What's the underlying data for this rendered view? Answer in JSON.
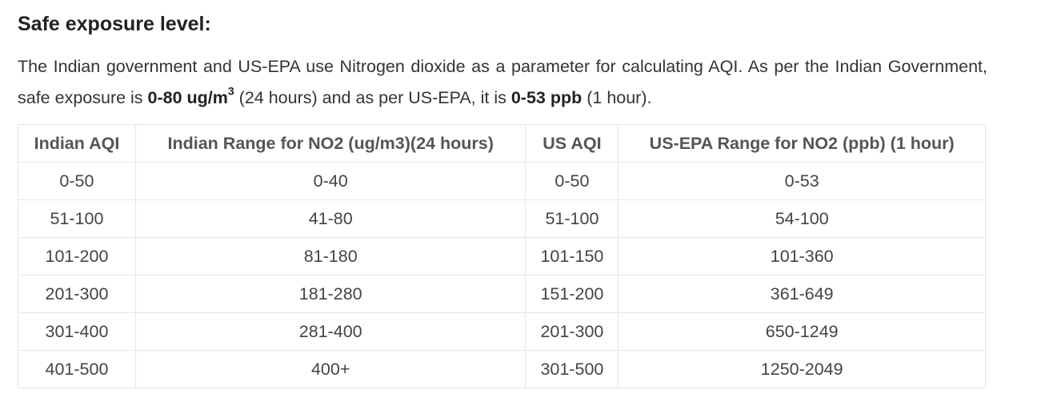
{
  "heading": "Safe exposure level:",
  "intro": {
    "part1": "The Indian government and US-EPA use Nitrogen dioxide as a parameter for calculating AQI. As per the Indian Government, safe exposure is ",
    "bold1": "0-80 ug/m",
    "bold1_sup": "3",
    "part2": " (24 hours) and as per US-EPA, it is ",
    "bold2": "0-53 ppb",
    "part3": " (1 hour)."
  },
  "table": {
    "headers": [
      "Indian AQI",
      "Indian Range for NO2 (ug/m3)(24 hours)",
      "US AQI",
      "US-EPA Range for NO2 (ppb) (1 hour)"
    ],
    "rows": [
      [
        "0-50",
        "0-40",
        "0-50",
        "0-53"
      ],
      [
        "51-100",
        "41-80",
        "51-100",
        "54-100"
      ],
      [
        "101-200",
        "81-180",
        "101-150",
        "101-360"
      ],
      [
        "201-300",
        "181-280",
        "151-200",
        "361-649"
      ],
      [
        "301-400",
        "281-400",
        "201-300",
        "650-1249"
      ],
      [
        "401-500",
        "400+",
        "301-500",
        "1250-2049"
      ]
    ]
  }
}
